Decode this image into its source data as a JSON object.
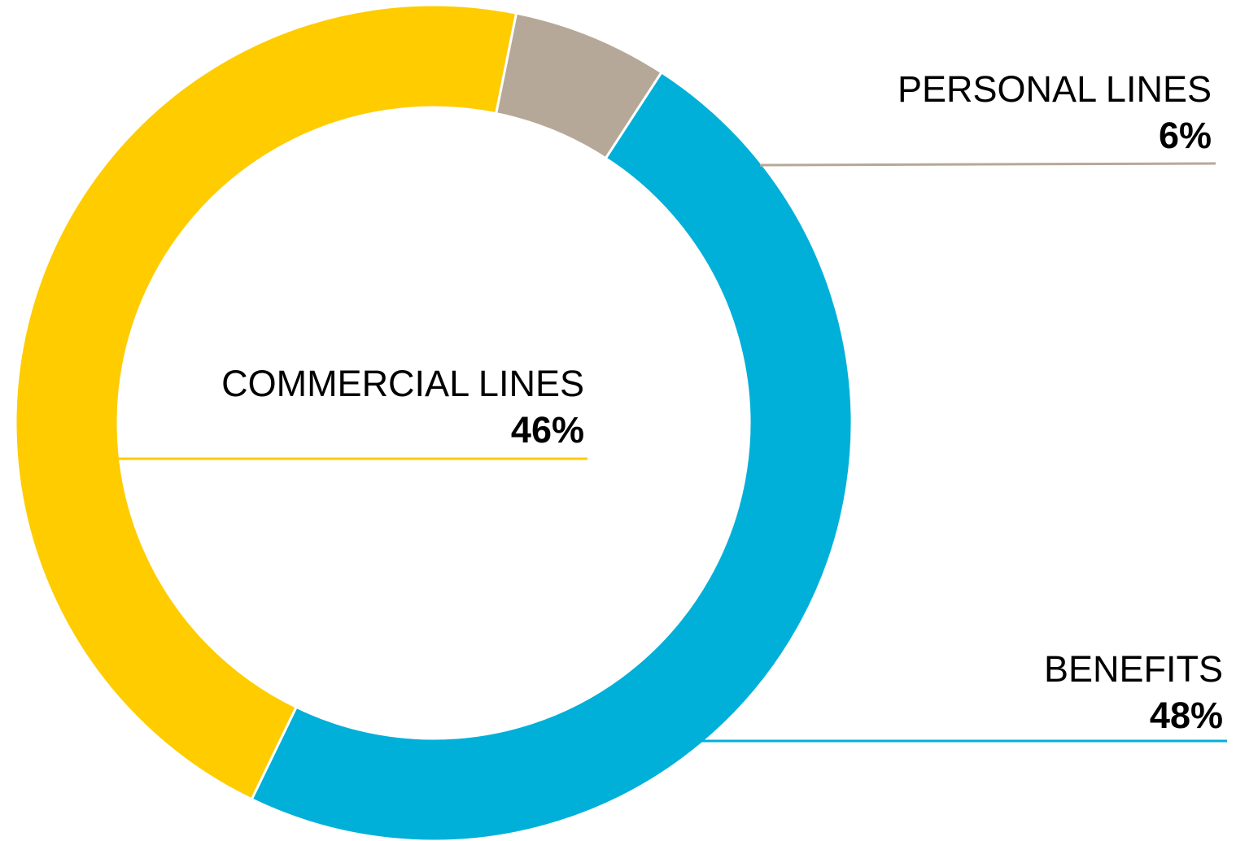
{
  "chart_data": {
    "type": "pie",
    "variant": "donut",
    "legend": "none",
    "slices": [
      {
        "label": "BENEFITS",
        "value": 48,
        "display": "48%",
        "color": "#00B0D8"
      },
      {
        "label": "COMMERCIAL LINES",
        "value": 46,
        "display": "46%",
        "color": "#FFCC00"
      },
      {
        "label": "PERSONAL LINES",
        "value": 6,
        "display": "6%",
        "color": "#B6A898"
      }
    ]
  }
}
